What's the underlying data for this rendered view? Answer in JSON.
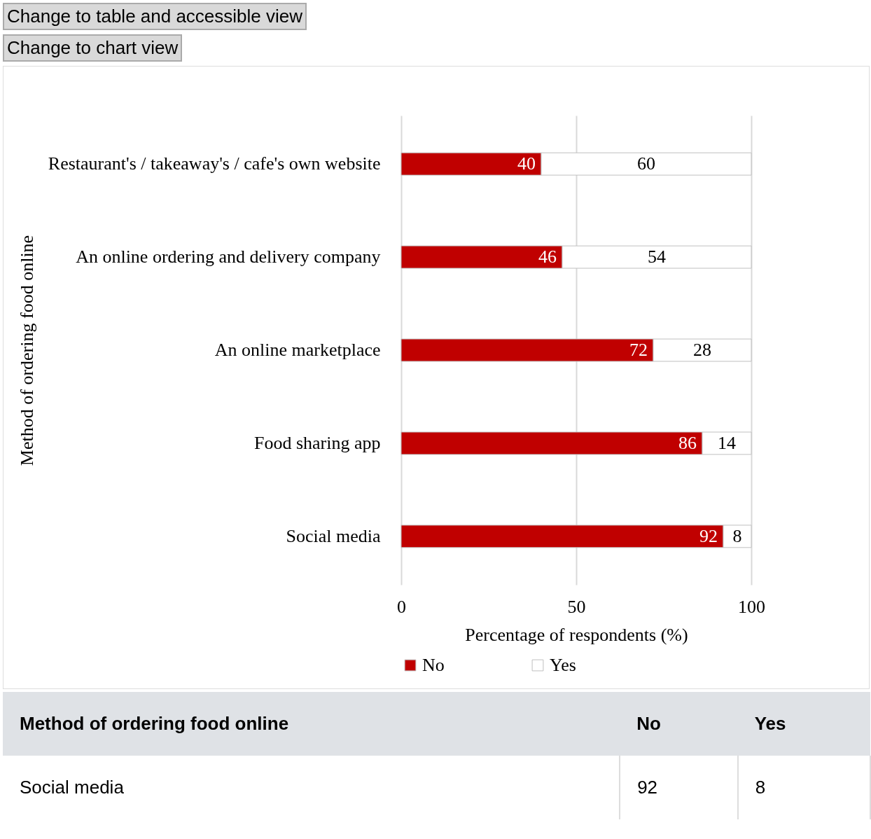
{
  "chart_data": {
    "type": "bar",
    "orientation": "horizontal",
    "stacked": true,
    "xlabel": "Percentage of respondents (%)",
    "ylabel": "Method of ordering food online",
    "categories": [
      "Restaurant's / takeaway's / cafe's own website",
      "An online ordering and delivery company",
      "An online marketplace",
      "Food sharing app",
      "Social media"
    ],
    "series": [
      {
        "name": "No",
        "color": "#c00000",
        "values": [
          40,
          46,
          72,
          86,
          92
        ]
      },
      {
        "name": "Yes",
        "color": "#ffffff",
        "values": [
          60,
          54,
          28,
          14,
          8
        ]
      }
    ],
    "xlim": [
      0,
      100
    ],
    "xticks": [
      0,
      50,
      100
    ],
    "grid": "x",
    "legend": "bottom",
    "data_labels": true,
    "annotations": [
      "Change to table and accessible view",
      "Change to chart view",
      "Method of ordering food online",
      "No",
      "Yes",
      "Social media",
      "92",
      "8"
    ]
  }
}
